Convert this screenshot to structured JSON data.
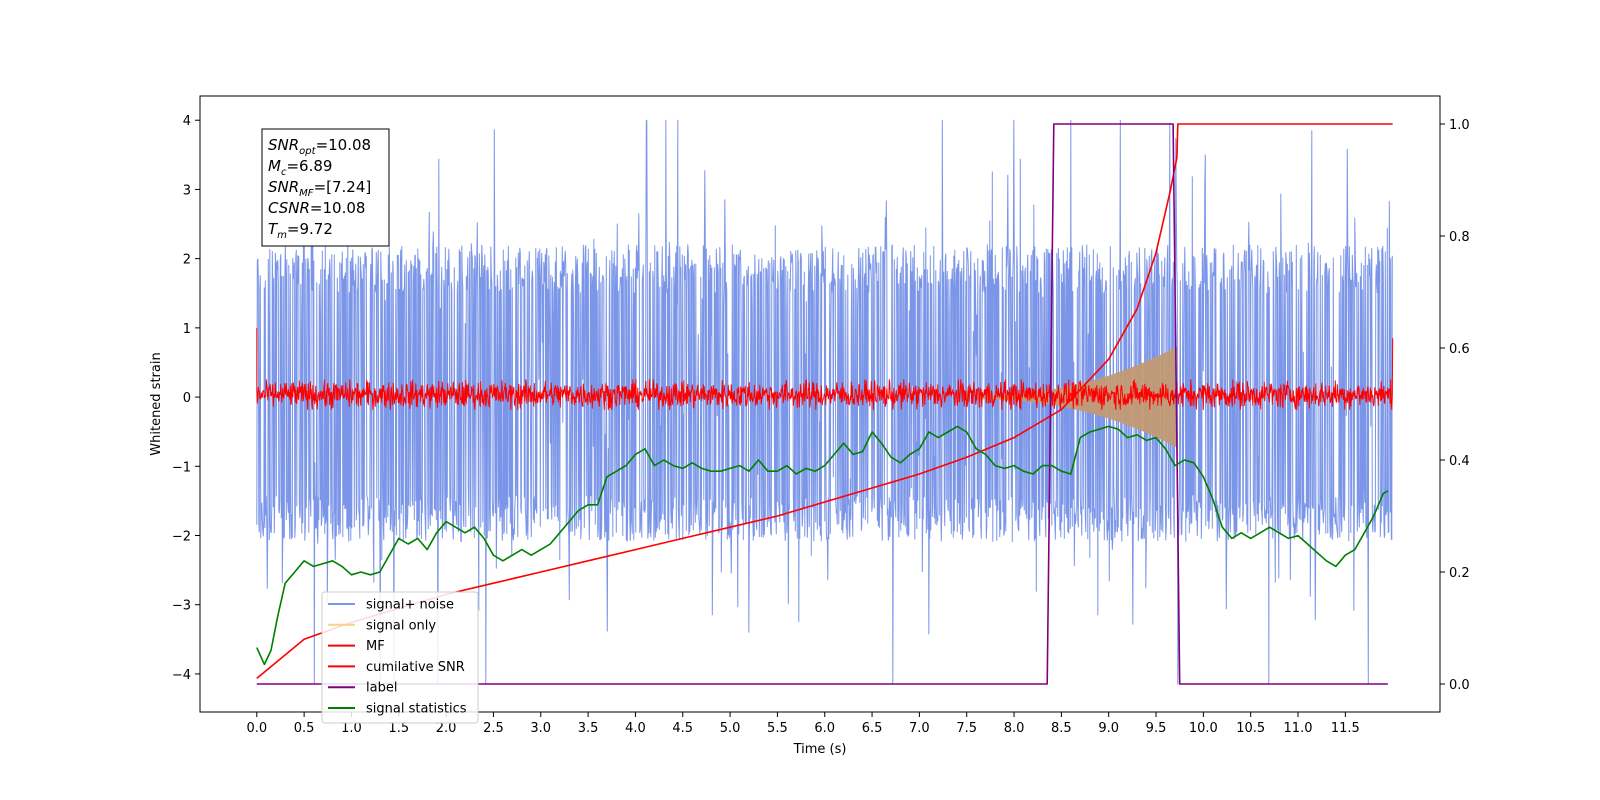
{
  "chart_data": {
    "type": "line",
    "xlabel": "Time (s)",
    "ylabel": "Whitened strain",
    "xlim": [
      -0.6,
      12.5
    ],
    "ylim": [
      -4.55,
      4.35
    ],
    "y2lim": [
      -0.05,
      1.05
    ],
    "x_ticks": [
      "0.0",
      "0.5",
      "1.0",
      "1.5",
      "2.0",
      "2.5",
      "3.0",
      "3.5",
      "4.0",
      "4.5",
      "5.0",
      "5.5",
      "6.0",
      "6.5",
      "7.0",
      "7.5",
      "8.0",
      "8.5",
      "9.0",
      "9.5",
      "10.0",
      "10.5",
      "11.0",
      "11.5"
    ],
    "y_ticks": [
      "4",
      "3",
      "2",
      "1",
      "0",
      "−1",
      "−2",
      "−3",
      "−4"
    ],
    "y2_ticks": [
      "1.0",
      "0.8",
      "0.6",
      "0.4",
      "0.2",
      "0.0"
    ],
    "legend_position": "lower-left",
    "annotation": {
      "snr_opt_base": "SNR",
      "snr_opt_sub": "opt",
      "snr_opt_value": "=10.08",
      "mc_base": "M",
      "mc_sub": "c",
      "mc_value": "=6.89",
      "snr_mf_base": "SNR",
      "snr_mf_sub": "MF",
      "snr_mf_value": "=[7.24]",
      "csnr_base": "CSNR",
      "csnr_value": "=10.08",
      "tm_base": "T",
      "tm_sub": "m",
      "tm_value": "=9.72"
    },
    "series": [
      {
        "name": "signal+ noise",
        "color": "#7b96e8",
        "kind": "noise",
        "x_range": [
          0,
          12
        ],
        "band": [
          -1.9,
          2.0
        ],
        "peak_range": [
          -4.15,
          4.0
        ]
      },
      {
        "name": "signal only",
        "color": "#f5d38a",
        "fill": "#c29a74",
        "kind": "chirp",
        "x_range": [
          7.6,
          9.72
        ],
        "amp_end": 0.7
      },
      {
        "name": "MF",
        "color": "#ff0000",
        "kind": "noise",
        "x_range": [
          0,
          12
        ],
        "band": [
          -0.18,
          0.25
        ],
        "edge_values": [
          1.0,
          0.85
        ]
      },
      {
        "name": "cumilative SNR",
        "color": "#ff0000",
        "axis": "right",
        "x": [
          0.0,
          0.5,
          1.0,
          1.5,
          2.0,
          2.5,
          3.0,
          3.5,
          4.0,
          4.5,
          5.0,
          5.5,
          6.0,
          6.5,
          7.0,
          7.5,
          8.0,
          8.5,
          9.0,
          9.3,
          9.5,
          9.65,
          9.72,
          9.73,
          12.0
        ],
        "values": [
          0.01,
          0.08,
          0.11,
          0.135,
          0.16,
          0.18,
          0.2,
          0.22,
          0.24,
          0.26,
          0.28,
          0.3,
          0.325,
          0.35,
          0.375,
          0.405,
          0.44,
          0.49,
          0.58,
          0.67,
          0.77,
          0.88,
          0.94,
          1.0,
          1.0
        ]
      },
      {
        "name": "label",
        "color": "#800080",
        "axis": "right",
        "x": [
          0.0,
          8.35,
          8.42,
          9.68,
          9.75,
          11.95
        ],
        "values": [
          0.0,
          0.0,
          1.0,
          1.0,
          0.0,
          0.0
        ]
      },
      {
        "name": "signal statistics",
        "color": "#008000",
        "axis": "right",
        "x": [
          0.0,
          0.08,
          0.15,
          0.22,
          0.3,
          0.4,
          0.5,
          0.6,
          0.7,
          0.8,
          0.9,
          1.0,
          1.1,
          1.2,
          1.3,
          1.4,
          1.5,
          1.6,
          1.7,
          1.8,
          1.9,
          2.0,
          2.1,
          2.2,
          2.3,
          2.4,
          2.5,
          2.6,
          2.7,
          2.8,
          2.9,
          3.0,
          3.1,
          3.2,
          3.3,
          3.4,
          3.5,
          3.6,
          3.7,
          3.8,
          3.9,
          4.0,
          4.1,
          4.2,
          4.3,
          4.4,
          4.5,
          4.6,
          4.7,
          4.8,
          4.9,
          5.0,
          5.1,
          5.2,
          5.3,
          5.4,
          5.5,
          5.6,
          5.7,
          5.8,
          5.9,
          6.0,
          6.1,
          6.2,
          6.3,
          6.4,
          6.5,
          6.6,
          6.7,
          6.8,
          6.9,
          7.0,
          7.1,
          7.2,
          7.3,
          7.4,
          7.5,
          7.6,
          7.7,
          7.8,
          7.9,
          8.0,
          8.1,
          8.2,
          8.3,
          8.4,
          8.5,
          8.6,
          8.7,
          8.8,
          8.9,
          9.0,
          9.1,
          9.2,
          9.3,
          9.4,
          9.5,
          9.6,
          9.7,
          9.8,
          9.9,
          10.0,
          10.1,
          10.2,
          10.3,
          10.4,
          10.5,
          10.6,
          10.7,
          10.8,
          10.9,
          11.0,
          11.1,
          11.2,
          11.3,
          11.4,
          11.5,
          11.6,
          11.7,
          11.8,
          11.9,
          11.95
        ],
        "values": [
          0.065,
          0.035,
          0.06,
          0.12,
          0.18,
          0.2,
          0.22,
          0.21,
          0.215,
          0.22,
          0.21,
          0.195,
          0.2,
          0.195,
          0.2,
          0.23,
          0.26,
          0.25,
          0.26,
          0.24,
          0.27,
          0.29,
          0.28,
          0.27,
          0.28,
          0.26,
          0.23,
          0.22,
          0.23,
          0.24,
          0.23,
          0.24,
          0.25,
          0.27,
          0.29,
          0.31,
          0.32,
          0.32,
          0.37,
          0.38,
          0.39,
          0.41,
          0.42,
          0.39,
          0.4,
          0.39,
          0.385,
          0.395,
          0.385,
          0.38,
          0.38,
          0.385,
          0.39,
          0.38,
          0.4,
          0.38,
          0.38,
          0.39,
          0.375,
          0.385,
          0.38,
          0.39,
          0.41,
          0.43,
          0.41,
          0.415,
          0.45,
          0.43,
          0.405,
          0.395,
          0.41,
          0.42,
          0.45,
          0.44,
          0.45,
          0.46,
          0.45,
          0.42,
          0.41,
          0.39,
          0.385,
          0.39,
          0.38,
          0.375,
          0.39,
          0.39,
          0.38,
          0.375,
          0.44,
          0.45,
          0.455,
          0.46,
          0.455,
          0.44,
          0.445,
          0.435,
          0.44,
          0.42,
          0.39,
          0.4,
          0.395,
          0.37,
          0.33,
          0.28,
          0.26,
          0.27,
          0.26,
          0.27,
          0.28,
          0.27,
          0.26,
          0.265,
          0.25,
          0.235,
          0.22,
          0.21,
          0.23,
          0.24,
          0.27,
          0.3,
          0.34,
          0.345
        ]
      }
    ]
  }
}
